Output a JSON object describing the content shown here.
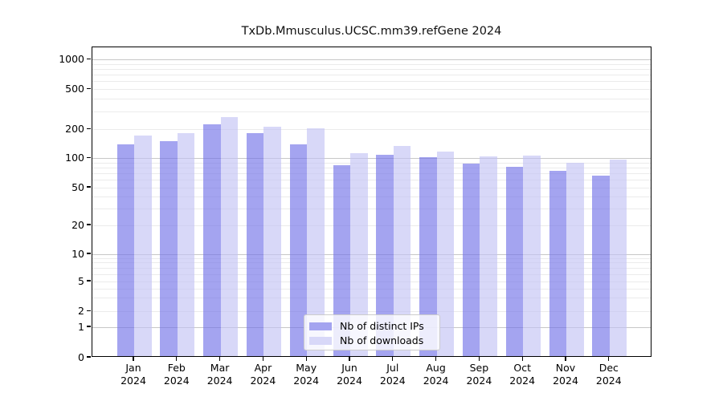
{
  "chart_data": {
    "type": "bar",
    "title": "TxDb.Mmusculus.UCSC.mm39.refGene 2024",
    "xlabel": "",
    "ylabel": "",
    "yscale": "symlog",
    "grid": true,
    "legend_position": "lower center",
    "ylim": [
      0,
      1000
    ],
    "yticks": [
      0,
      1,
      2,
      5,
      10,
      20,
      50,
      100,
      200,
      500,
      1000
    ],
    "tick_year": "2024",
    "categories": [
      "Jan",
      "Feb",
      "Mar",
      "Apr",
      "May",
      "Jun",
      "Jul",
      "Aug",
      "Sep",
      "Oct",
      "Nov",
      "Dec"
    ],
    "series": [
      {
        "name": "Nb of distinct IPs",
        "color": "#a4a4f0",
        "values": [
          140,
          152,
          225,
          186,
          141,
          85,
          110,
          102,
          88,
          82,
          75,
          67
        ]
      },
      {
        "name": "Nb of downloads",
        "color": "#d8d8f8",
        "values": [
          175,
          185,
          265,
          215,
          207,
          113,
          135,
          119,
          105,
          107,
          90,
          97
        ]
      }
    ]
  }
}
